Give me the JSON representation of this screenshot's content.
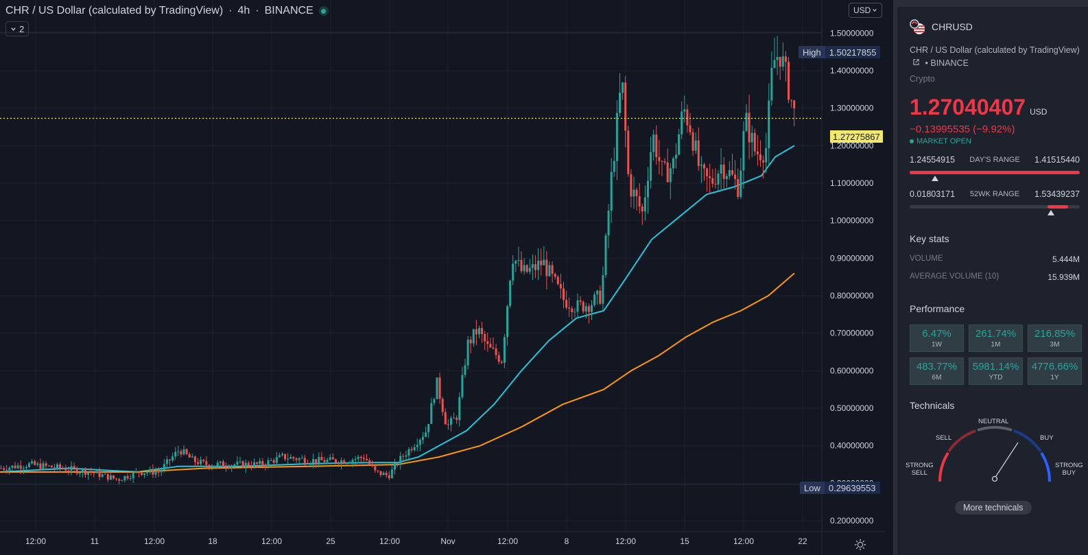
{
  "header": {
    "title": "CHR / US Dollar (calculated by TradingView)",
    "separator": "·",
    "interval": "4h",
    "exchange": "BINANCE",
    "indicators_count": "2",
    "currency": "USD"
  },
  "colors": {
    "up": "#26a69a",
    "down": "#ef5350",
    "ma_fast": "#26c6da",
    "ma_slow": "#ff9800",
    "current_price_line": "#f2e86d"
  },
  "price_scale": {
    "labels": [
      "1.50000000",
      "1.40000000",
      "1.30000000",
      "1.20000000",
      "1.10000000",
      "1.00000000",
      "0.90000000",
      "0.80000000",
      "0.70000000",
      "0.60000000",
      "0.50000000",
      "0.40000000",
      "0.30000000",
      "0.20000000"
    ],
    "high_label": "High",
    "high_value": "1.50217855",
    "low_label": "Low",
    "low_value": "0.29639553",
    "current_value": "1.27275867"
  },
  "time_scale": {
    "labels": [
      "12:00",
      "11",
      "12:00",
      "18",
      "12:00",
      "25",
      "12:00",
      "Nov",
      "12:00",
      "8",
      "12:00",
      "15",
      "12:00",
      "22"
    ]
  },
  "chart_data": {
    "type": "candlestick",
    "symbol": "CHRUSD",
    "interval": "4h",
    "ylim": [
      0.18,
      1.57
    ],
    "current_price": 1.27275867,
    "high": 1.50217855,
    "low": 0.29639553,
    "close_anchors": [
      [
        0,
        0.34
      ],
      [
        40,
        0.35
      ],
      [
        90,
        0.34
      ],
      [
        130,
        0.33
      ],
      [
        170,
        0.31
      ],
      [
        200,
        0.33
      ],
      [
        230,
        0.33
      ],
      [
        260,
        0.39
      ],
      [
        280,
        0.36
      ],
      [
        300,
        0.35
      ],
      [
        340,
        0.35
      ],
      [
        380,
        0.35
      ],
      [
        410,
        0.37
      ],
      [
        460,
        0.36
      ],
      [
        500,
        0.36
      ],
      [
        530,
        0.37
      ],
      [
        545,
        0.33
      ],
      [
        565,
        0.32
      ],
      [
        580,
        0.36
      ],
      [
        600,
        0.4
      ],
      [
        620,
        0.44
      ],
      [
        635,
        0.57
      ],
      [
        650,
        0.45
      ],
      [
        665,
        0.48
      ],
      [
        680,
        0.67
      ],
      [
        695,
        0.71
      ],
      [
        710,
        0.66
      ],
      [
        730,
        0.63
      ],
      [
        745,
        0.91
      ],
      [
        760,
        0.86
      ],
      [
        775,
        0.87
      ],
      [
        790,
        0.89
      ],
      [
        805,
        0.84
      ],
      [
        820,
        0.79
      ],
      [
        840,
        0.77
      ],
      [
        860,
        0.78
      ],
      [
        875,
        0.8
      ],
      [
        890,
        1.12
      ],
      [
        905,
        1.38
      ],
      [
        915,
        1.1
      ],
      [
        935,
        1.02
      ],
      [
        950,
        1.23
      ],
      [
        965,
        1.12
      ],
      [
        980,
        1.15
      ],
      [
        995,
        1.3
      ],
      [
        1005,
        1.25
      ],
      [
        1020,
        1.12
      ],
      [
        1035,
        1.1
      ],
      [
        1050,
        1.15
      ],
      [
        1060,
        1.13
      ],
      [
        1075,
        1.09
      ],
      [
        1085,
        1.27
      ],
      [
        1100,
        1.18
      ],
      [
        1115,
        1.19
      ],
      [
        1125,
        1.42
      ],
      [
        1135,
        1.45
      ],
      [
        1145,
        1.38
      ],
      [
        1158,
        1.27
      ]
    ],
    "moving_averages": [
      {
        "points": [
          [
            0,
            0.33
          ],
          [
            100,
            0.34
          ],
          [
            200,
            0.33
          ],
          [
            260,
            0.345
          ],
          [
            350,
            0.345
          ],
          [
            450,
            0.352
          ],
          [
            540,
            0.355
          ],
          [
            580,
            0.355
          ],
          [
            610,
            0.37
          ],
          [
            640,
            0.4
          ],
          [
            680,
            0.44
          ],
          [
            720,
            0.51
          ],
          [
            760,
            0.6
          ],
          [
            800,
            0.68
          ],
          [
            840,
            0.74
          ],
          [
            880,
            0.76
          ],
          [
            910,
            0.84
          ],
          [
            950,
            0.95
          ],
          [
            990,
            1.01
          ],
          [
            1030,
            1.07
          ],
          [
            1070,
            1.09
          ],
          [
            1110,
            1.12
          ],
          [
            1130,
            1.17
          ],
          [
            1158,
            1.2
          ]
        ]
      },
      {
        "points": [
          [
            0,
            0.33
          ],
          [
            200,
            0.33
          ],
          [
            300,
            0.34
          ],
          [
            450,
            0.345
          ],
          [
            580,
            0.35
          ],
          [
            640,
            0.37
          ],
          [
            700,
            0.4
          ],
          [
            760,
            0.45
          ],
          [
            820,
            0.51
          ],
          [
            880,
            0.55
          ],
          [
            920,
            0.6
          ],
          [
            960,
            0.64
          ],
          [
            1000,
            0.69
          ],
          [
            1040,
            0.73
          ],
          [
            1080,
            0.76
          ],
          [
            1120,
            0.8
          ],
          [
            1158,
            0.86
          ]
        ]
      }
    ],
    "grid": true
  },
  "panel": {
    "symbol": "CHRUSD",
    "description": "CHR / US Dollar (calculated by TradingView)",
    "exchange": "BINANCE",
    "dot": "•",
    "category": "Crypto",
    "price": "1.27040407",
    "currency": "USD",
    "change": "−0.13995535 (−9.92%)",
    "market_status": "MARKET OPEN",
    "days_range": {
      "low": "1.24554915",
      "label": "DAY'S RANGE",
      "high": "1.41515440",
      "marker": 0.15
    },
    "wk52_range": {
      "low": "0.01803171",
      "label": "52WK RANGE",
      "high": "1.53439237",
      "marker": 0.83
    },
    "key_stats_title": "Key stats",
    "stats": [
      {
        "label": "VOLUME",
        "value": "5.444M"
      },
      {
        "label": "AVERAGE VOLUME (10)",
        "value": "15.939M"
      }
    ],
    "performance_title": "Performance",
    "performance": [
      {
        "value": "6.47%",
        "period": "1W"
      },
      {
        "value": "261.74%",
        "period": "1M"
      },
      {
        "value": "216.85%",
        "period": "3M"
      },
      {
        "value": "483.77%",
        "period": "6M"
      },
      {
        "value": "5981.14%",
        "period": "YTD"
      },
      {
        "value": "4776.66%",
        "period": "1Y"
      }
    ],
    "technicals_title": "Technicals",
    "gauge": {
      "neutral": "NEUTRAL",
      "sell": "SELL",
      "buy": "BUY",
      "strong_sell_1": "STRONG",
      "strong_sell_2": "SELL",
      "strong_buy_1": "STRONG",
      "strong_buy_2": "BUY"
    },
    "more_button": "More technicals"
  }
}
